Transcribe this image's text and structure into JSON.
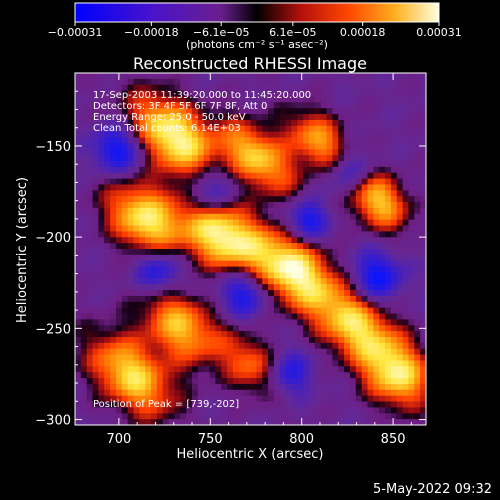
{
  "chart_data": {
    "type": "heatmap",
    "title": "Reconstructed RHESSI Image",
    "xlabel": "Heliocentric X (arcsec)",
    "ylabel": "Heliocentric Y (arcsec)",
    "xlim": [
      676,
      868
    ],
    "ylim": [
      -303,
      -110
    ],
    "x_ticks": [
      700,
      750,
      800,
      850
    ],
    "x_tick_labels": [
      "700",
      "750",
      "800",
      "850"
    ],
    "y_ticks": [
      -150,
      -200,
      -250,
      -300
    ],
    "y_tick_labels": [
      "−150",
      "−200",
      "−250",
      "−300"
    ],
    "colorbar": {
      "min": -0.00031,
      "max": 0.00031,
      "ticks": [
        -0.00031,
        -0.00018,
        -6.1e-05,
        6.1e-05,
        0.00018,
        0.00031
      ],
      "tick_labels": [
        "−0.00031",
        "−0.00018",
        "−6.1e−05",
        "6.1e−05",
        "0.00018",
        "0.00031"
      ],
      "units_label": "(photons cm⁻² s⁻¹ asec⁻²)"
    },
    "annotations": [
      "17-Sep-2003 11:39:20.000 to 11:45:20.000",
      "Detectors: 3F 4F 5F 6F 7F 8F, Att 0",
      "Energy Range: 25.0 - 50.0 keV",
      "Clean     Total counts: 6.14E+03"
    ],
    "peak_label": "Position of Peak = [739,-202]",
    "peak_x": 739,
    "peak_y": -202,
    "colors": {
      "low": "#0000ff",
      "mid_low": "#7a2fa0",
      "zero": "#000000",
      "mid_high": "#ff3000",
      "high": "#ffffcc"
    }
  },
  "footer": {
    "timestamp": "5-May-2022 09:32"
  }
}
